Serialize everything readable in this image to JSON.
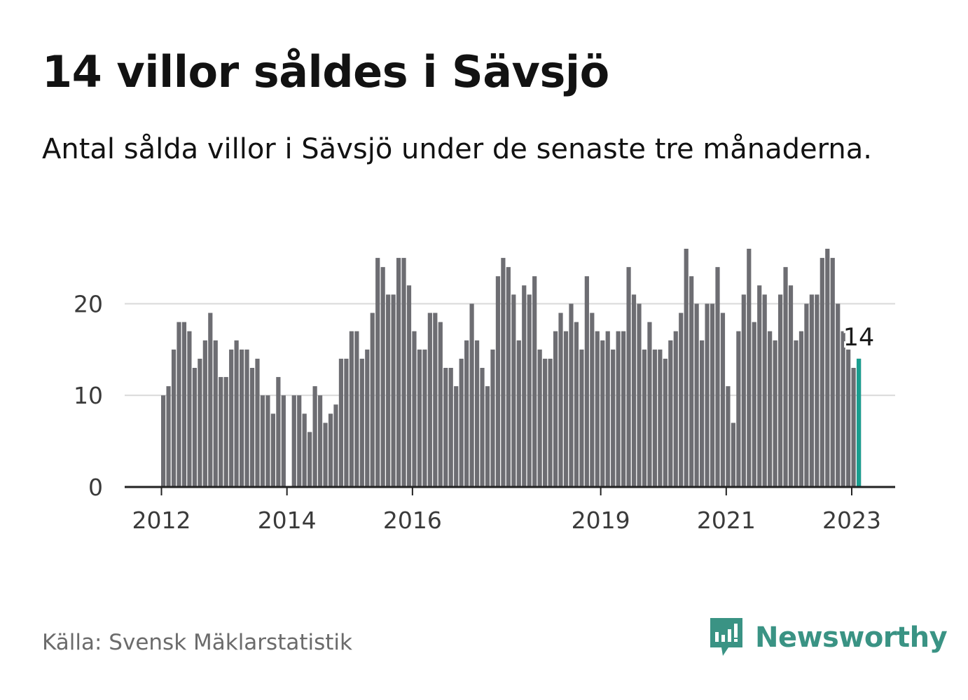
{
  "title": "14 villor såldes i Sävsjö",
  "subtitle": "Antal sålda villor i Sävsjö under de senaste tre månaderna.",
  "source": "Källa: Svensk Mäklarstatistik",
  "brand": {
    "name": "Newsworthy",
    "icon": "newsworthy-bar-chart-logo-icon",
    "color": "#3a9384"
  },
  "colors": {
    "bar": "#6d6d72",
    "highlight": "#1a9e8f",
    "grid": "#d9d9d9",
    "axis": "#222222"
  },
  "chart_data": {
    "type": "bar",
    "title": "14 villor såldes i Sävsjö",
    "xlabel": "",
    "ylabel": "",
    "ylim": [
      0,
      26
    ],
    "yticks": [
      0,
      10,
      20
    ],
    "grid": true,
    "x_start": "2012-01",
    "x_tick_labels": [
      {
        "label": "2012",
        "index": 0
      },
      {
        "label": "2014",
        "index": 24
      },
      {
        "label": "2016",
        "index": 48
      },
      {
        "label": "2019",
        "index": 84
      },
      {
        "label": "2021",
        "index": 108
      },
      {
        "label": "2023",
        "index": 132
      }
    ],
    "values": [
      10,
      11,
      15,
      18,
      18,
      17,
      13,
      14,
      16,
      19,
      16,
      12,
      12,
      15,
      16,
      15,
      15,
      13,
      14,
      10,
      10,
      8,
      12,
      10,
      0,
      10,
      10,
      8,
      6,
      11,
      10,
      7,
      8,
      9,
      14,
      14,
      17,
      17,
      14,
      15,
      19,
      25,
      24,
      21,
      21,
      25,
      25,
      22,
      17,
      15,
      15,
      19,
      19,
      18,
      13,
      13,
      11,
      14,
      16,
      20,
      16,
      13,
      11,
      15,
      23,
      25,
      24,
      21,
      16,
      22,
      21,
      23,
      15,
      14,
      14,
      17,
      19,
      17,
      20,
      18,
      15,
      23,
      19,
      17,
      16,
      17,
      15,
      17,
      17,
      24,
      21,
      20,
      15,
      18,
      15,
      15,
      14,
      16,
      17,
      19,
      26,
      23,
      20,
      16,
      20,
      20,
      24,
      19,
      11,
      7,
      17,
      21,
      26,
      18,
      22,
      21,
      17,
      16,
      21,
      24,
      22,
      16,
      17,
      20,
      21,
      21,
      25,
      26,
      25,
      20,
      17,
      15,
      13,
      14
    ],
    "highlight": {
      "index": 133,
      "value": 14,
      "label": "14"
    }
  }
}
